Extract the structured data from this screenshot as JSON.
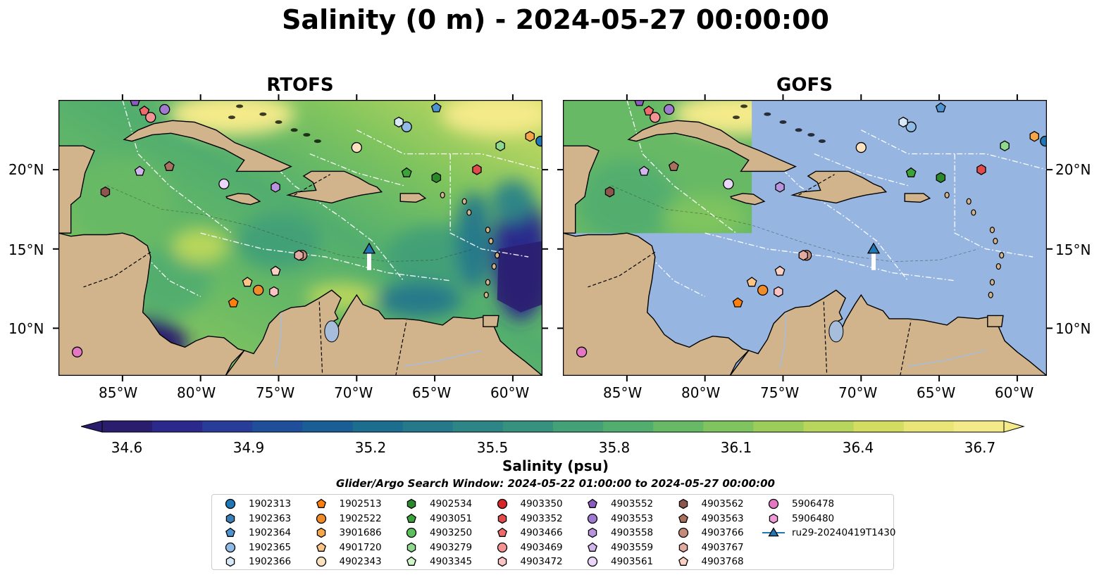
{
  "title": "Salinity (0 m) - 2024-05-27 00:00:00",
  "panels": [
    {
      "title": "RTOFS",
      "gofs": false
    },
    {
      "title": "GOFS",
      "gofs": true
    }
  ],
  "lat_labels": [
    "20°N",
    "15°N",
    "10°N"
  ],
  "lon_labels": [
    "85°W",
    "80°W",
    "75°W",
    "70°W",
    "65°W",
    "60°W"
  ],
  "colorbar": {
    "ticks": [
      "34.6",
      "34.9",
      "35.2",
      "35.5",
      "35.8",
      "36.1",
      "36.4",
      "36.7"
    ],
    "label": "Salinity (psu)",
    "search_window": "Glider/Argo Search Window: 2024-05-22 01:00:00 to 2024-05-27 00:00:00",
    "colors": [
      "#2a1d6e",
      "#2b2a8c",
      "#273d97",
      "#1f4f9a",
      "#1a5e96",
      "#1c6d8e",
      "#25798a",
      "#2d8586",
      "#36927f",
      "#43a077",
      "#52ae6e",
      "#68b965",
      "#7fc45e",
      "#9ccd5b",
      "#b8d65b",
      "#d2dd61",
      "#e9e577",
      "#f4ea8a"
    ]
  },
  "map_colors": {
    "land": "#d2b48c",
    "gofs_ocean": "#96b5e0",
    "deep_low": "#2a1d6e",
    "coast": "#000000",
    "rivers": "#a6bddb"
  },
  "legend": [
    {
      "label": "1902313",
      "color": "#1f77b4",
      "marker": "circle"
    },
    {
      "label": "1902363",
      "color": "#3a7fb8",
      "marker": "hexagon"
    },
    {
      "label": "1902364",
      "color": "#4c93d0",
      "marker": "pentagon"
    },
    {
      "label": "1902365",
      "color": "#8fbbe6",
      "marker": "circle"
    },
    {
      "label": "1902366",
      "color": "#d7e8f7",
      "marker": "hexagon"
    },
    {
      "label": "1902513",
      "color": "#ff7f0e",
      "marker": "pentagon"
    },
    {
      "label": "1902522",
      "color": "#f08b2a",
      "marker": "circle"
    },
    {
      "label": "3901686",
      "color": "#f7a647",
      "marker": "hexagon"
    },
    {
      "label": "4901720",
      "color": "#fcc486",
      "marker": "pentagon"
    },
    {
      "label": "4902343",
      "color": "#fde2c0",
      "marker": "circle"
    },
    {
      "label": "4902534",
      "color": "#2a8a2a",
      "marker": "hexagon"
    },
    {
      "label": "4903051",
      "color": "#3aa43a",
      "marker": "pentagon"
    },
    {
      "label": "4903250",
      "color": "#5cc15c",
      "marker": "circle"
    },
    {
      "label": "4903279",
      "color": "#8ed98e",
      "marker": "hexagon"
    },
    {
      "label": "4903345",
      "color": "#cff5c8",
      "marker": "pentagon"
    },
    {
      "label": "4903350",
      "color": "#d62728",
      "marker": "circle"
    },
    {
      "label": "4903352",
      "color": "#e04b4b",
      "marker": "hexagon"
    },
    {
      "label": "4903466",
      "color": "#ee6b6b",
      "marker": "pentagon"
    },
    {
      "label": "4903469",
      "color": "#f49393",
      "marker": "circle"
    },
    {
      "label": "4903472",
      "color": "#fbc3c3",
      "marker": "hexagon"
    },
    {
      "label": "4903552",
      "color": "#8a5cc0",
      "marker": "pentagon"
    },
    {
      "label": "4903553",
      "color": "#a07ad0",
      "marker": "circle"
    },
    {
      "label": "4903558",
      "color": "#b894de",
      "marker": "hexagon"
    },
    {
      "label": "4903559",
      "color": "#d3b5ee",
      "marker": "pentagon"
    },
    {
      "label": "4903561",
      "color": "#ead6f8",
      "marker": "circle"
    },
    {
      "label": "4903562",
      "color": "#8c564b",
      "marker": "hexagon"
    },
    {
      "label": "4903563",
      "color": "#a8705f",
      "marker": "pentagon"
    },
    {
      "label": "4903766",
      "color": "#c48a7a",
      "marker": "circle"
    },
    {
      "label": "4903767",
      "color": "#e2aaa0",
      "marker": "hexagon"
    },
    {
      "label": "4903768",
      "color": "#fbcfc2",
      "marker": "pentagon"
    },
    {
      "label": "5906478",
      "color": "#e377c2",
      "marker": "circle"
    },
    {
      "label": "5906480",
      "color": "#f29ad6",
      "marker": "hexagon"
    },
    {
      "label": "ru29-20240419T1430",
      "color": "#1f77b4",
      "marker": "triangle-line"
    }
  ],
  "floats": [
    {
      "id": "1902313",
      "lon": -58.2,
      "lat": 21.8
    },
    {
      "id": "1902364",
      "lon": -64.9,
      "lat": 23.9
    },
    {
      "id": "1902365",
      "lon": -66.8,
      "lat": 22.7
    },
    {
      "id": "1902366",
      "lon": -67.3,
      "lat": 23.0
    },
    {
      "id": "1902513",
      "lon": -77.9,
      "lat": 11.6
    },
    {
      "id": "1902522",
      "lon": -76.3,
      "lat": 12.4
    },
    {
      "id": "4901720",
      "lon": -77.0,
      "lat": 12.9
    },
    {
      "id": "4902343",
      "lon": -70.0,
      "lat": 21.4
    },
    {
      "id": "4902534",
      "lon": -64.9,
      "lat": 19.5
    },
    {
      "id": "4903051",
      "lon": -66.8,
      "lat": 19.8
    },
    {
      "id": "4903279",
      "lon": -60.8,
      "lat": 21.5
    },
    {
      "id": "4903352",
      "lon": -62.3,
      "lat": 20.0
    },
    {
      "id": "4903466",
      "lon": -83.6,
      "lat": 23.7
    },
    {
      "id": "4903469",
      "lon": -83.2,
      "lat": 23.3
    },
    {
      "id": "4903472",
      "lon": -75.3,
      "lat": 12.3
    },
    {
      "id": "4903558",
      "lon": -75.2,
      "lat": 18.9
    },
    {
      "id": "4903559",
      "lon": -83.9,
      "lat": 19.9
    },
    {
      "id": "4903561",
      "lon": -78.5,
      "lat": 19.1
    },
    {
      "id": "4903553",
      "lon": -82.3,
      "lat": 23.8
    },
    {
      "id": "4903562",
      "lon": -86.1,
      "lat": 18.6
    },
    {
      "id": "4903563",
      "lon": -82.0,
      "lat": 20.2
    },
    {
      "id": "4903766",
      "lon": -73.5,
      "lat": 14.6
    },
    {
      "id": "4903767",
      "lon": -73.7,
      "lat": 14.6
    },
    {
      "id": "4903768",
      "lon": -75.2,
      "lat": 13.6
    },
    {
      "id": "5906478",
      "lon": -87.9,
      "lat": 8.5
    },
    {
      "id": "3901686",
      "lon": -58.9,
      "lat": 22.1
    },
    {
      "id": "4903552",
      "lon": -84.2,
      "lat": 24.3
    }
  ],
  "glider": {
    "id": "ru29-20240419T1430",
    "lon": -69.2,
    "lat": 15.0
  }
}
